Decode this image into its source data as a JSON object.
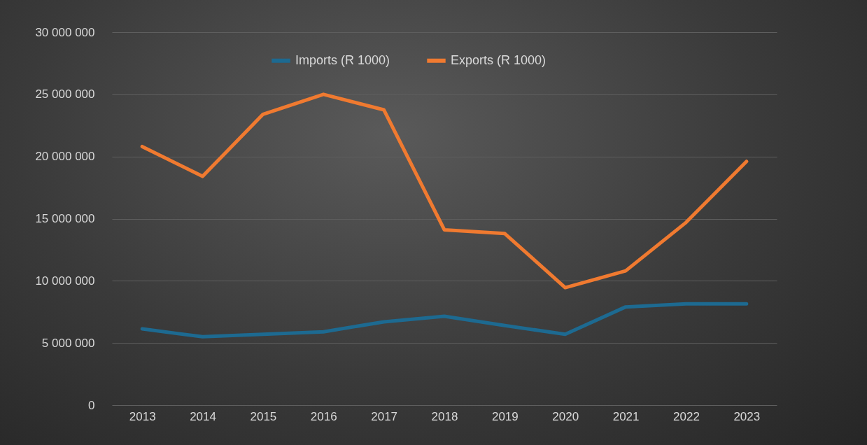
{
  "chart_data": {
    "type": "line",
    "categories": [
      "2013",
      "2014",
      "2015",
      "2016",
      "2017",
      "2018",
      "2019",
      "2020",
      "2021",
      "2022",
      "2023"
    ],
    "series": [
      {
        "name": "Imports (R 1000)",
        "color": "#1d6a91",
        "values": [
          6130000,
          5500000,
          5700000,
          5900000,
          6700000,
          7150000,
          6400000,
          5700000,
          7900000,
          8150000,
          8150000
        ]
      },
      {
        "name": "Exports (R 1000)",
        "color": "#f07a30",
        "values": [
          20800000,
          18400000,
          23400000,
          25000000,
          23750000,
          14100000,
          13800000,
          9450000,
          10800000,
          14700000,
          19600000
        ]
      }
    ],
    "ylim": [
      0,
      30000000
    ],
    "yticks": [
      {
        "value": 0,
        "label": "0"
      },
      {
        "value": 5000000,
        "label": "5 000 000"
      },
      {
        "value": 10000000,
        "label": "10 000 000"
      },
      {
        "value": 15000000,
        "label": "15 000 000"
      },
      {
        "value": 20000000,
        "label": "20 000 000"
      },
      {
        "value": 25000000,
        "label": "25 000 000"
      },
      {
        "value": 30000000,
        "label": "30 000 000"
      }
    ],
    "grid": "y",
    "legend": "top",
    "marker": "none",
    "line_style": "solid"
  }
}
